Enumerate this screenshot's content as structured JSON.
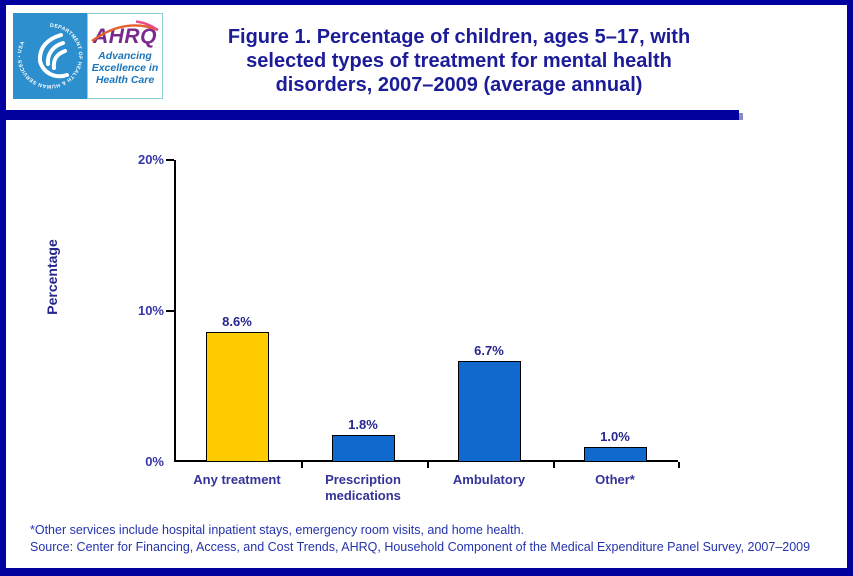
{
  "header": {
    "logo": {
      "hhs_seal_text": "DEPARTMENT OF HEALTH & HUMAN SERVICES • USA",
      "ahrq_acronym": "AHRQ",
      "tagline": [
        "Advancing",
        "Excellence in",
        "Health Care"
      ]
    },
    "title_lines": [
      "Figure 1. Percentage of children, ages 5–17, with",
      "selected types of treatment for mental health",
      "disorders, 2007–2009 (average annual)"
    ]
  },
  "chart_data": {
    "type": "bar",
    "title": "Figure 1. Percentage of children, ages 5–17, with selected types of treatment for mental health disorders, 2007–2009 (average annual)",
    "categories": [
      "Any treatment",
      "Prescription medications",
      "Ambulatory",
      "Other*"
    ],
    "values": [
      8.6,
      1.8,
      6.7,
      1.0
    ],
    "value_labels": [
      "8.6%",
      "1.8%",
      "6.7%",
      "1.0%"
    ],
    "bar_colors": [
      "#FFCC00",
      "#1169CD",
      "#1169CD",
      "#1169CD"
    ],
    "bar_border_color": "#000000",
    "xlabel": "",
    "ylabel": "Percentage",
    "ylim": [
      0,
      20
    ],
    "ytick_labels": [
      "0%",
      "10%",
      "20%"
    ],
    "grid": false,
    "legend": "none"
  },
  "footnotes": {
    "line1": "*Other services include hospital inpatient stays, emergency room visits, and home health.",
    "line2": "Source: Center for Financing, Access, and Cost Trends, AHRQ, Household Component of the Medical Expenditure Panel Survey, 2007–2009"
  },
  "colors": {
    "frame_navy": "#0101A0",
    "title_navy": "#1C1C99",
    "value_label_navy": "#26268F",
    "category_blue": "#333399",
    "tick_label_blue": "#3636A8",
    "footnote_blue": "#2433AE",
    "hhs_blue": "#2E8FCE",
    "ahrq_purple": "#7A2A8F",
    "tagline_blue": "#1B75BB",
    "gold_bar": "#FFCC00",
    "blue_bar": "#1169CD",
    "axis_black": "#000000"
  }
}
